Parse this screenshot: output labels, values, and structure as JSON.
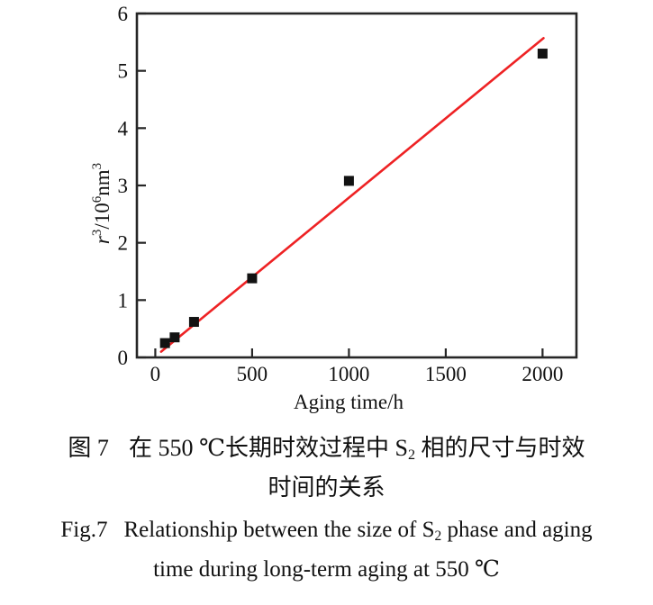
{
  "chart_data": {
    "type": "scatter",
    "title": "",
    "xlabel": "Aging time/h",
    "ylabel_plain": "r3/106nm3",
    "ylabel_segments": [
      {
        "t": "r",
        "style": "italic"
      },
      {
        "t": "3",
        "pos": "sup"
      },
      {
        "t": "/10",
        "pos": "base"
      },
      {
        "t": "6",
        "pos": "sup"
      },
      {
        "t": "nm",
        "pos": "base"
      },
      {
        "t": "3",
        "pos": "sup"
      }
    ],
    "x_ticks": [
      "0",
      "500",
      "1000",
      "1500",
      "2000"
    ],
    "x_tick_values": [
      0,
      500,
      1000,
      1500,
      2000
    ],
    "y_ticks": [
      "0",
      "1",
      "2",
      "3",
      "4",
      "5",
      "6"
    ],
    "y_tick_values": [
      0,
      1,
      2,
      3,
      4,
      5,
      6
    ],
    "xlim": [
      -95,
      2175
    ],
    "ylim": [
      0,
      6
    ],
    "grid": false,
    "legend": "none",
    "series": [
      {
        "name": "r3 vs aging time",
        "marker": "square",
        "marker_color": "#121212",
        "marker_size": 11,
        "x": [
          50,
          100,
          200,
          500,
          1000,
          2000
        ],
        "y": [
          0.25,
          0.35,
          0.62,
          1.38,
          3.08,
          5.3
        ]
      }
    ],
    "fit_line": {
      "name": "linear fit",
      "color": "#ee2224",
      "width": 2.6,
      "x_start": 30,
      "y_start": 0.1,
      "x_end": 2005,
      "y_end": 5.57
    },
    "axis_color": "#262626",
    "tick_font_size": 23,
    "label_font_size": 23
  },
  "captions": {
    "cn": {
      "label": "图 7",
      "line1_pre": "在 550 ℃长期时效过程中 S",
      "line1_sub": "2",
      "line1_post": " 相的尺寸与时效",
      "line2": "时间的关系"
    },
    "en": {
      "label": "Fig.7",
      "line1_pre": "Relationship between the size of S",
      "line1_sub": "2",
      "line1_post": " phase and aging",
      "line2": "time during long-term aging at 550 ℃"
    }
  }
}
